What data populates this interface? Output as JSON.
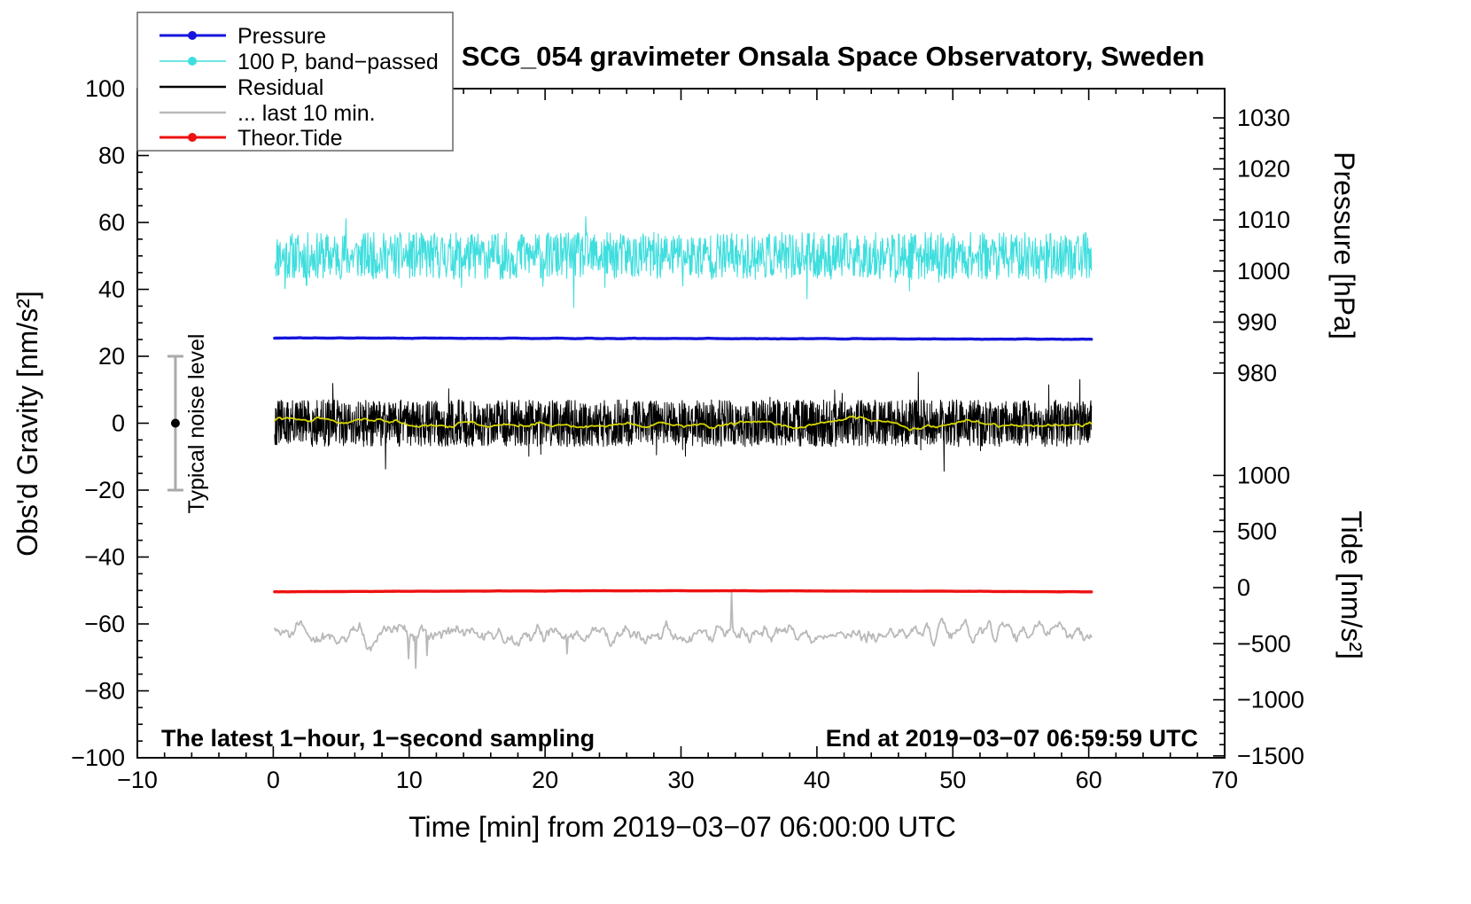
{
  "chart_data": {
    "type": "line",
    "title": "SCG_054 gravimeter Onsala Space Observatory, Sweden",
    "xlabel": "Time [min] from 2019−03−07 06:00:00 UTC",
    "ylabel_left": "Obs'd Gravity [nm/s²]",
    "ylabel_pressure": "Pressure [hPa]",
    "ylabel_tide": "Tide [nm/s²]",
    "xlim": [
      -10,
      70
    ],
    "xticks": [
      -10,
      0,
      10,
      20,
      30,
      40,
      50,
      60,
      70
    ],
    "ylim_left": [
      -100,
      100
    ],
    "yticks_left": [
      -100,
      -80,
      -60,
      -40,
      -20,
      0,
      20,
      40,
      60,
      80,
      100
    ],
    "pressure_ticks": [
      980,
      990,
      1000,
      1010,
      1020,
      1030
    ],
    "tide_ticks": [
      -1500,
      -1000,
      -500,
      0,
      500,
      1000
    ],
    "grid": false,
    "legend_position": "top-left",
    "legend": [
      {
        "label": "Pressure",
        "color": "#1515dd",
        "marker": true
      },
      {
        "label": "100 P, band−passed",
        "color": "#3fdede",
        "marker": true
      },
      {
        "label": "Residual",
        "color": "#000000",
        "marker": false
      },
      {
        "label": "... last 10 min.",
        "color": "#b9b9b9",
        "marker": false
      },
      {
        "label": "Theor.Tide",
        "color": "#ee1111",
        "marker": true
      }
    ],
    "annotations": {
      "sampling_note": "The latest 1−hour, 1−second sampling",
      "end_note": "End at 2019−03−07 06:59:59 UTC",
      "noise_label": "Typical noise level"
    },
    "noise_bar": {
      "x_time_min": -7.2,
      "center_value": 0,
      "half_range": 20
    },
    "series": [
      {
        "id": "bandpassed",
        "name": "100 P, band-passed",
        "color": "#3fdede",
        "width": 1.1,
        "x_range": [
          0.1,
          60.2
        ],
        "points": 1500,
        "mean": 50,
        "amplitude": 7,
        "smooth": 1,
        "spike_prob": 0.02,
        "spike_scale": 10,
        "spike_neg_frac": 0.65,
        "seed": 11
      },
      {
        "id": "pressure",
        "name": "Pressure",
        "color": "#1515dd",
        "width": 3.4,
        "x_range": [
          0.1,
          60.2
        ],
        "points": 500,
        "mean": 25.3,
        "amplitude": 0.12,
        "smooth": 3,
        "trend": -0.4,
        "seed": 21
      },
      {
        "id": "residual",
        "name": "Residual",
        "color": "#000000",
        "width": 1.0,
        "x_range": [
          0.1,
          60.2
        ],
        "points": 2600,
        "mean": 0,
        "amplitude": 7,
        "smooth": 1,
        "spike_prob": 0.012,
        "spike_scale": 9,
        "spike_neg_frac": 0.5,
        "seed": 31
      },
      {
        "id": "residual-mean",
        "name": "Residual running mean",
        "color": "#d6d600",
        "width": 1.8,
        "x_range": [
          0.1,
          60.2
        ],
        "points": 450,
        "mean": 0,
        "amplitude": 2.2,
        "smooth": 15,
        "seed": 41
      },
      {
        "id": "last10min",
        "name": "... last 10 min.",
        "color": "#b9b9b9",
        "width": 1.8,
        "x_range": [
          0.1,
          60.2
        ],
        "points": 800,
        "mean": -63,
        "amplitude": 5,
        "smooth": 3,
        "spike_prob": 0.005,
        "spike_scale": 12,
        "spike_neg_frac": 0.9,
        "seed": 51
      },
      {
        "id": "theor-tide",
        "name": "Theor.Tide",
        "color": "#ee1111",
        "width": 3.4,
        "x_range": [
          0.1,
          60.2
        ],
        "points": 400,
        "mean": -50.4,
        "amplitude": 0.06,
        "smooth": 3,
        "arch": 0.3,
        "seed": 61
      }
    ]
  }
}
